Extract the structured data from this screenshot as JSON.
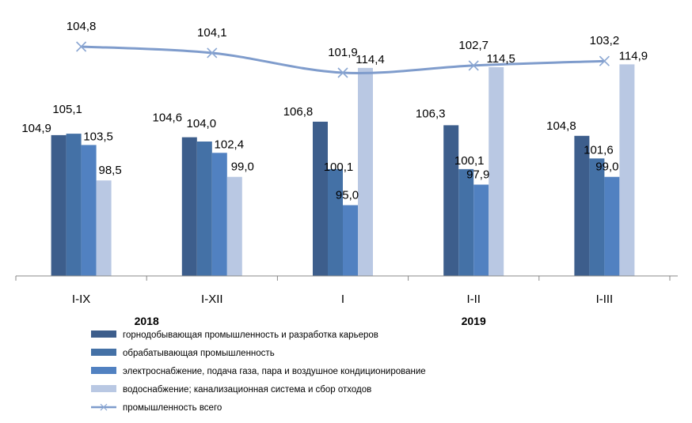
{
  "chart_data": {
    "type": "bar",
    "categories": [
      "I-IX",
      "I-XII",
      "I",
      "I-II",
      "I-III"
    ],
    "year_labels": [
      {
        "text": "2018",
        "categories": [
          0,
          1
        ]
      },
      {
        "text": "2019",
        "categories": [
          2,
          3,
          4
        ]
      }
    ],
    "series": [
      {
        "name": "горнодобывающая промышленность и разработка карьеров",
        "type": "bar",
        "color": "#3d5e8c",
        "values": [
          104.9,
          104.6,
          106.8,
          106.3,
          104.8
        ],
        "labels": [
          "104,9",
          "104,6",
          "106,8",
          "106,3",
          "104,8"
        ]
      },
      {
        "name": "обрабатывающая промышленность",
        "type": "bar",
        "color": "#4471a6",
        "values": [
          105.1,
          104.0,
          100.1,
          100.1,
          101.6
        ],
        "labels": [
          "105,1",
          "104,0",
          "100,1",
          "100,1",
          "101,6"
        ]
      },
      {
        "name": "электроснабжение, подача газа, пара и воздушное кондиционирование",
        "type": "bar",
        "color": "#5181c1",
        "values": [
          103.5,
          102.4,
          95.0,
          97.9,
          99.0
        ],
        "labels": [
          "103,5",
          "102,4",
          "95,0",
          "97,9",
          "99,0"
        ]
      },
      {
        "name": "водоснабжение; канализационная система и сбор отходов",
        "type": "bar",
        "color": "#b9c8e3",
        "values": [
          98.5,
          99.0,
          114.4,
          114.5,
          114.9
        ],
        "labels": [
          "98,5",
          "99,0",
          "114,4",
          "114,5",
          "114,9"
        ]
      },
      {
        "name": "промышленность всего",
        "type": "line",
        "color": "#7f9ccc",
        "values": [
          104.8,
          104.1,
          101.9,
          102.7,
          103.2
        ],
        "labels": [
          "104,8",
          "104,1",
          "101,9",
          "102,7",
          "103,2"
        ]
      }
    ],
    "ylim": [
      85,
      118
    ],
    "grid": false,
    "legend_position": "bottom-center"
  }
}
